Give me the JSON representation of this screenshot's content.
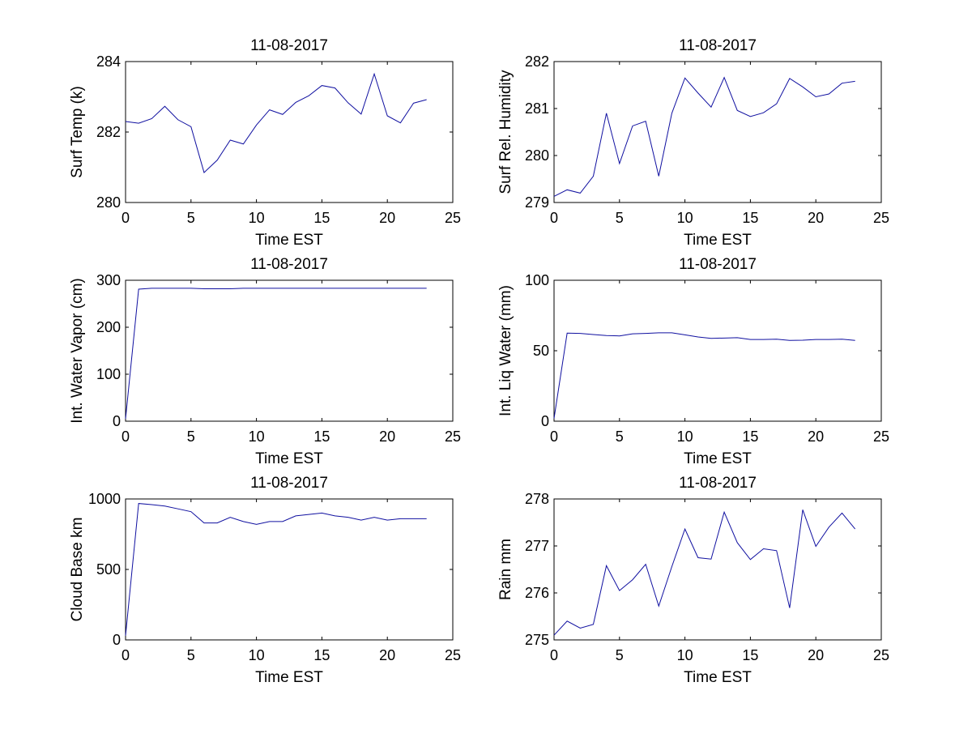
{
  "colors": {
    "series": "#1010a0",
    "axes": "#000000",
    "background": "#ffffff"
  },
  "chart_data": [
    {
      "type": "line",
      "title": "11-08-2017",
      "xlabel": "Time EST",
      "ylabel": "Surf Temp (k)",
      "xlim": [
        0,
        25
      ],
      "ylim": [
        280,
        284
      ],
      "xticks": [
        0,
        5,
        10,
        15,
        20,
        25
      ],
      "yticks": [
        280,
        282,
        284
      ],
      "grid": false,
      "x": [
        0,
        1,
        2,
        3,
        4,
        5,
        6,
        7,
        8,
        9,
        10,
        11,
        12,
        13,
        14,
        15,
        16,
        17,
        18,
        19,
        20,
        21,
        22,
        23
      ],
      "values": [
        282.3,
        282.25,
        282.38,
        282.73,
        282.35,
        282.15,
        280.85,
        281.2,
        281.77,
        281.66,
        282.2,
        282.63,
        282.5,
        282.84,
        283.03,
        283.32,
        283.25,
        282.83,
        282.51,
        283.65,
        282.46,
        282.26,
        282.82,
        282.92
      ]
    },
    {
      "type": "line",
      "title": "11-08-2017",
      "xlabel": "Time EST",
      "ylabel": "Surf Rel. Humidity",
      "xlim": [
        0,
        25
      ],
      "ylim": [
        279,
        282
      ],
      "xticks": [
        0,
        5,
        10,
        15,
        20,
        25
      ],
      "yticks": [
        279,
        280,
        281,
        282
      ],
      "grid": false,
      "x": [
        0,
        1,
        2,
        3,
        4,
        5,
        6,
        7,
        8,
        9,
        10,
        11,
        12,
        13,
        14,
        15,
        16,
        17,
        18,
        19,
        20,
        21,
        22,
        23
      ],
      "values": [
        279.13,
        279.27,
        279.2,
        279.56,
        280.9,
        279.83,
        280.63,
        280.73,
        279.56,
        280.9,
        281.65,
        281.33,
        281.03,
        281.66,
        280.96,
        280.83,
        280.91,
        281.1,
        281.64,
        281.46,
        281.25,
        281.31,
        281.54,
        281.58
      ]
    },
    {
      "type": "line",
      "title": "11-08-2017",
      "xlabel": "Time EST",
      "ylabel": "Int. Water Vapor (cm)",
      "xlim": [
        0,
        25
      ],
      "ylim": [
        0,
        300
      ],
      "xticks": [
        0,
        5,
        10,
        15,
        20,
        25
      ],
      "yticks": [
        0,
        100,
        200,
        300
      ],
      "grid": false,
      "x": [
        0,
        1,
        2,
        3,
        4,
        5,
        6,
        7,
        8,
        9,
        10,
        11,
        12,
        13,
        14,
        15,
        16,
        17,
        18,
        19,
        20,
        21,
        22,
        23
      ],
      "values": [
        5,
        281,
        283,
        283,
        283,
        283,
        282,
        282,
        282,
        283,
        283,
        283,
        283,
        283,
        283,
        283,
        283,
        283,
        283,
        283,
        283,
        283,
        283,
        283
      ]
    },
    {
      "type": "line",
      "title": "11-08-2017",
      "xlabel": "Time EST",
      "ylabel": "Int. Liq Water (mm)",
      "xlim": [
        0,
        25
      ],
      "ylim": [
        0,
        100
      ],
      "xticks": [
        0,
        5,
        10,
        15,
        20,
        25
      ],
      "yticks": [
        0,
        50,
        100
      ],
      "grid": false,
      "x": [
        0,
        1,
        2,
        3,
        4,
        5,
        6,
        7,
        8,
        9,
        10,
        11,
        12,
        13,
        14,
        15,
        16,
        17,
        18,
        19,
        20,
        21,
        22,
        23
      ],
      "values": [
        2,
        62.5,
        62.3,
        61.5,
        60.8,
        60.5,
        62,
        62.3,
        62.7,
        62.7,
        61.3,
        59.8,
        58.8,
        59,
        59.3,
        58,
        58,
        58.2,
        57.3,
        57.5,
        58,
        58,
        58.2,
        57.3
      ]
    },
    {
      "type": "line",
      "title": "11-08-2017",
      "xlabel": "Time EST",
      "ylabel": "Cloud Base km",
      "xlim": [
        0,
        25
      ],
      "ylim": [
        0,
        1000
      ],
      "xticks": [
        0,
        5,
        10,
        15,
        20,
        25
      ],
      "yticks": [
        0,
        500,
        1000
      ],
      "grid": false,
      "x": [
        0,
        1,
        2,
        3,
        4,
        5,
        6,
        7,
        8,
        9,
        10,
        11,
        12,
        13,
        14,
        15,
        16,
        17,
        18,
        19,
        20,
        21,
        22,
        23
      ],
      "values": [
        30,
        968,
        960,
        950,
        930,
        910,
        830,
        830,
        870,
        840,
        820,
        840,
        840,
        880,
        890,
        900,
        880,
        870,
        850,
        870,
        850,
        860,
        860,
        860
      ]
    },
    {
      "type": "line",
      "title": "11-08-2017",
      "xlabel": "Time EST",
      "ylabel": "Rain mm",
      "xlim": [
        0,
        25
      ],
      "ylim": [
        275,
        278
      ],
      "xticks": [
        0,
        5,
        10,
        15,
        20,
        25
      ],
      "yticks": [
        275,
        276,
        277,
        278
      ],
      "grid": false,
      "x": [
        0,
        1,
        2,
        3,
        4,
        5,
        6,
        7,
        8,
        9,
        10,
        11,
        12,
        13,
        14,
        15,
        16,
        17,
        18,
        19,
        20,
        21,
        22,
        23
      ],
      "values": [
        275.1,
        275.4,
        275.25,
        275.33,
        276.58,
        276.05,
        276.28,
        276.61,
        275.72,
        276.56,
        277.36,
        276.75,
        276.72,
        277.72,
        277.07,
        276.71,
        276.94,
        276.9,
        275.68,
        277.77,
        276.99,
        277.4,
        277.7,
        277.36
      ]
    }
  ]
}
